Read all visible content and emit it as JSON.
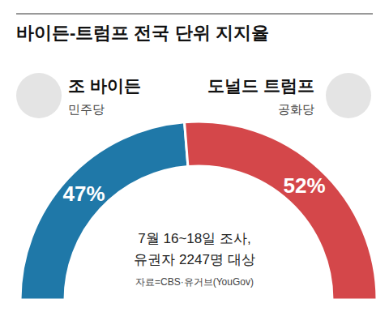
{
  "chart_data": {
    "type": "pie",
    "title": "바이든-트럼프 전국 단위 지지율",
    "categories": [
      "조 바이든",
      "도널드 트럼프"
    ],
    "parties": [
      "민주당",
      "공화당"
    ],
    "values": [
      47,
      52
    ],
    "value_labels": [
      "47%",
      "52%"
    ],
    "colors": [
      "#1f78a8",
      "#d4474a"
    ],
    "data_labels": true,
    "annotations": [
      "7월 16~18일 조사,",
      "유권자 2247명 대상"
    ],
    "source": "자료=CBS·유거브(YouGov)"
  }
}
